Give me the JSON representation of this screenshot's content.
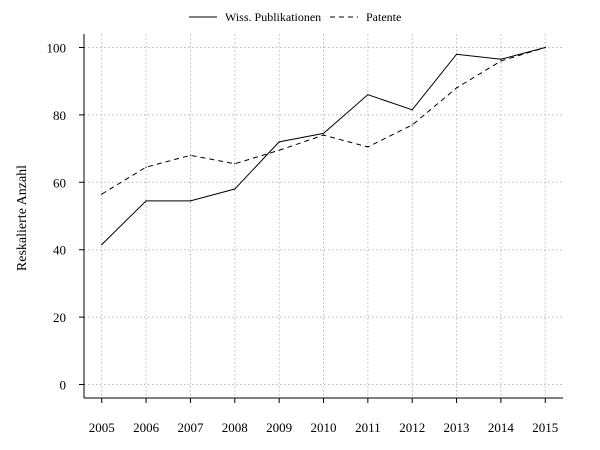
{
  "chart_data": {
    "type": "line",
    "title": "",
    "xlabel": "",
    "ylabel": "Reskalierte Anzahl",
    "x": [
      2005,
      2006,
      2007,
      2008,
      2009,
      2010,
      2011,
      2012,
      2013,
      2014,
      2015
    ],
    "xticks": [
      "2005",
      "2006",
      "2007",
      "2008",
      "2009",
      "2010",
      "2011",
      "2012",
      "2013",
      "2014",
      "2015"
    ],
    "yticks": [
      "0",
      "20",
      "40",
      "60",
      "80",
      "100"
    ],
    "ylim": [
      -4,
      104
    ],
    "xlim": [
      2004.6,
      2015.4
    ],
    "grid": true,
    "legend_position": "top-center",
    "series": [
      {
        "name": "Wiss. Publikationen",
        "line_style": "solid",
        "color": "#000000",
        "values": [
          41.5,
          54.5,
          54.5,
          58,
          72,
          74.5,
          86,
          81.5,
          98,
          96.5,
          100
        ]
      },
      {
        "name": "Patente",
        "line_style": "dashed",
        "color": "#000000",
        "values": [
          56.5,
          64.5,
          68,
          65.5,
          69.5,
          74,
          70.5,
          77,
          88,
          96,
          100
        ]
      }
    ]
  }
}
